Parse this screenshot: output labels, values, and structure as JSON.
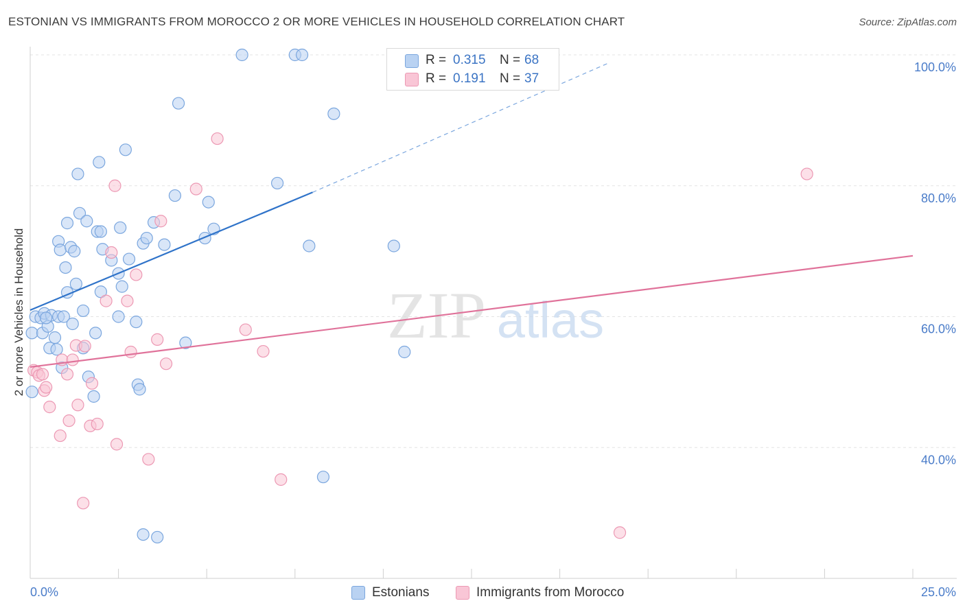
{
  "title": "ESTONIAN VS IMMIGRANTS FROM MOROCCO 2 OR MORE VEHICLES IN HOUSEHOLD CORRELATION CHART",
  "source": "Source: ZipAtlas.com",
  "watermark": {
    "zip": "ZIP",
    "atlas": "atlas"
  },
  "stats": [
    {
      "r_label": "R =",
      "r_value": "0.315",
      "n_label": "N =",
      "n_value": "68"
    },
    {
      "r_label": "R =",
      "r_value": "0.191",
      "n_label": "N =",
      "n_value": "37"
    }
  ],
  "legend": [
    {
      "label": "Estonians"
    },
    {
      "label": "Immigrants from Morocco"
    }
  ],
  "colors": {
    "blue_fill": "#b9d2f2",
    "blue_stroke": "#7aa6de",
    "blue_line": "#2f73c9",
    "pink_fill": "#f9c6d6",
    "pink_stroke": "#ec98b3",
    "pink_line": "#e0729a",
    "axis_text": "#4a7cc9",
    "grid": "#e3e3e3"
  },
  "chart_data": {
    "type": "scatter",
    "xlabel": "",
    "ylabel": "2 or more Vehicles in Household",
    "xlim": [
      0,
      25
    ],
    "ylim": [
      20,
      100
    ],
    "x_tick_labels": [
      "0.0%",
      "25.0%"
    ],
    "y_ticks": [
      40,
      60,
      80,
      100
    ],
    "y_tick_labels": [
      "40.0%",
      "60.0%",
      "80.0%",
      "100.0%"
    ],
    "grid": true,
    "legend_position": "bottom-center",
    "series": [
      {
        "name": "Estonians",
        "color": "#7aa6de",
        "trend": {
          "x0": 0,
          "y0": 61.0,
          "x1": 8.0,
          "y1": 79.0,
          "dash_to_x": 16.4,
          "dash_to_y": 98.8
        },
        "points": [
          [
            0.05,
            57.5
          ],
          [
            0.05,
            48.5
          ],
          [
            0.15,
            60.0
          ],
          [
            0.3,
            59.8
          ],
          [
            0.35,
            57.5
          ],
          [
            0.4,
            60.5
          ],
          [
            0.5,
            58.5
          ],
          [
            0.55,
            55.2
          ],
          [
            0.6,
            60.2
          ],
          [
            0.7,
            56.8
          ],
          [
            0.75,
            55.0
          ],
          [
            0.8,
            60.0
          ],
          [
            0.8,
            71.5
          ],
          [
            0.85,
            70.2
          ],
          [
            0.9,
            52.2
          ],
          [
            0.95,
            60.0
          ],
          [
            1.0,
            67.5
          ],
          [
            1.05,
            74.3
          ],
          [
            1.05,
            63.7
          ],
          [
            1.15,
            70.6
          ],
          [
            1.2,
            58.9
          ],
          [
            1.25,
            70.0
          ],
          [
            1.3,
            65.0
          ],
          [
            1.35,
            81.8
          ],
          [
            1.4,
            75.8
          ],
          [
            1.5,
            55.2
          ],
          [
            1.5,
            60.9
          ],
          [
            1.6,
            74.6
          ],
          [
            1.65,
            50.8
          ],
          [
            1.8,
            47.8
          ],
          [
            1.85,
            57.5
          ],
          [
            1.9,
            73.0
          ],
          [
            1.95,
            83.6
          ],
          [
            2.0,
            73.0
          ],
          [
            2.0,
            63.8
          ],
          [
            2.05,
            70.3
          ],
          [
            2.3,
            68.6
          ],
          [
            2.5,
            66.6
          ],
          [
            2.5,
            60.0
          ],
          [
            2.55,
            73.6
          ],
          [
            2.6,
            64.6
          ],
          [
            2.7,
            85.5
          ],
          [
            2.8,
            68.8
          ],
          [
            3.0,
            59.2
          ],
          [
            3.05,
            49.6
          ],
          [
            3.1,
            48.9
          ],
          [
            3.2,
            26.7
          ],
          [
            3.2,
            71.2
          ],
          [
            3.3,
            72.0
          ],
          [
            3.5,
            74.4
          ],
          [
            3.6,
            26.3
          ],
          [
            3.8,
            71.0
          ],
          [
            4.1,
            78.5
          ],
          [
            4.2,
            92.6
          ],
          [
            4.4,
            56.0
          ],
          [
            4.95,
            72.0
          ],
          [
            5.05,
            77.5
          ],
          [
            5.2,
            73.4
          ],
          [
            6.0,
            100.0
          ],
          [
            7.0,
            80.4
          ],
          [
            7.5,
            100.0
          ],
          [
            7.7,
            100.0
          ],
          [
            7.9,
            70.8
          ],
          [
            8.3,
            35.5
          ],
          [
            8.6,
            91.0
          ],
          [
            10.3,
            70.8
          ],
          [
            10.6,
            54.6
          ],
          [
            0.45,
            59.8
          ]
        ]
      },
      {
        "name": "Immigrants from Morocco",
        "color": "#ec98b3",
        "trend": {
          "x0": 0,
          "y0": 52.3,
          "x1": 25.0,
          "y1": 69.3
        },
        "points": [
          [
            0.1,
            51.8
          ],
          [
            0.2,
            51.5
          ],
          [
            0.25,
            51.0
          ],
          [
            0.35,
            51.2
          ],
          [
            0.4,
            48.7
          ],
          [
            0.45,
            49.2
          ],
          [
            0.55,
            46.2
          ],
          [
            0.85,
            41.8
          ],
          [
            0.9,
            53.4
          ],
          [
            1.05,
            51.2
          ],
          [
            1.1,
            44.1
          ],
          [
            1.2,
            53.4
          ],
          [
            1.3,
            55.6
          ],
          [
            1.35,
            46.5
          ],
          [
            1.5,
            31.5
          ],
          [
            1.55,
            55.5
          ],
          [
            1.7,
            43.3
          ],
          [
            1.75,
            49.8
          ],
          [
            1.9,
            43.6
          ],
          [
            2.15,
            62.4
          ],
          [
            2.3,
            69.8
          ],
          [
            2.4,
            80.0
          ],
          [
            2.45,
            40.5
          ],
          [
            2.75,
            62.4
          ],
          [
            2.85,
            54.6
          ],
          [
            3.0,
            66.4
          ],
          [
            3.35,
            38.2
          ],
          [
            3.6,
            56.5
          ],
          [
            3.7,
            74.6
          ],
          [
            3.85,
            52.8
          ],
          [
            4.7,
            79.5
          ],
          [
            5.3,
            87.2
          ],
          [
            6.1,
            58.0
          ],
          [
            6.6,
            54.7
          ],
          [
            7.1,
            35.1
          ],
          [
            16.7,
            27.0
          ],
          [
            22.0,
            81.8
          ]
        ]
      }
    ]
  }
}
